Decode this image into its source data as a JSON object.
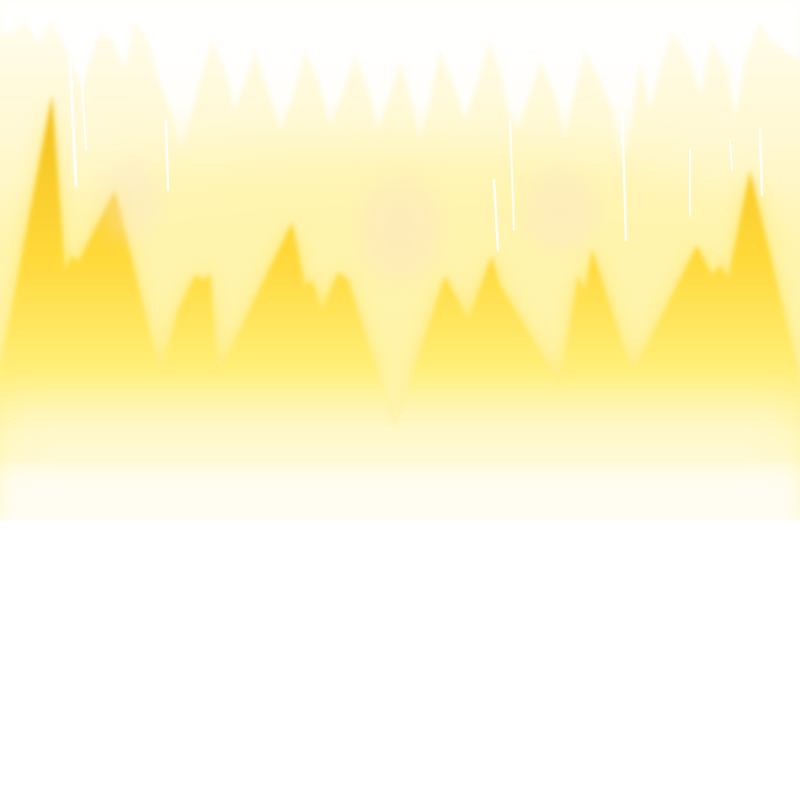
{
  "scene": {
    "description_colors": {
      "background": "#ffffff",
      "glow_inner": "#fff7b8",
      "flame_edge": "#f4c21f",
      "flame_mid": "#ffe34a",
      "flame_pale": "#fff4a6",
      "haze": "#fffbe8",
      "highlight": "#ffffff"
    }
  }
}
